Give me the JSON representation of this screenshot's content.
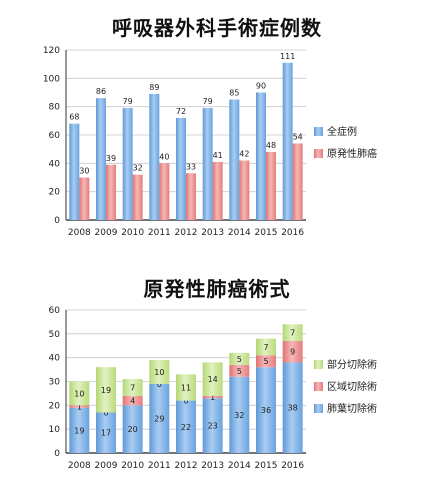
{
  "chart_data": [
    {
      "type": "bar",
      "title": "呼吸器外科手術症例数",
      "categories": [
        "2008",
        "2009",
        "2010",
        "2011",
        "2012",
        "2013",
        "2014",
        "2015",
        "2016"
      ],
      "series": [
        {
          "name": "全症例",
          "values": [
            68,
            86,
            79,
            89,
            72,
            79,
            85,
            90,
            111
          ],
          "color": "#7fb1e6"
        },
        {
          "name": "原発性肺癌",
          "values": [
            30,
            39,
            32,
            40,
            33,
            41,
            42,
            48,
            54
          ],
          "color": "#ee8d8d"
        }
      ],
      "ylim": [
        0,
        120
      ],
      "yticks": [
        0,
        20,
        40,
        60,
        80,
        100,
        120
      ],
      "grid": true,
      "legend": "right"
    },
    {
      "type": "bar",
      "stacked": true,
      "title": "原発性肺癌術式",
      "categories": [
        "2008",
        "2009",
        "2010",
        "2011",
        "2012",
        "2013",
        "2014",
        "2015",
        "2016"
      ],
      "series": [
        {
          "name": "肺葉切除術",
          "values": [
            19,
            17,
            20,
            29,
            22,
            23,
            32,
            36,
            38
          ],
          "color": "#7fb1e6"
        },
        {
          "name": "区域切除術",
          "values": [
            1,
            0,
            4,
            0,
            0,
            1,
            5,
            5,
            9
          ],
          "color": "#ee8d8d"
        },
        {
          "name": "部分切除術",
          "values": [
            10,
            19,
            7,
            10,
            11,
            14,
            5,
            7,
            7
          ],
          "color": "#c6e38f"
        }
      ],
      "ylim": [
        0,
        60
      ],
      "yticks": [
        0,
        10,
        20,
        30,
        40,
        50,
        60
      ],
      "grid": true,
      "legend": "right"
    }
  ]
}
